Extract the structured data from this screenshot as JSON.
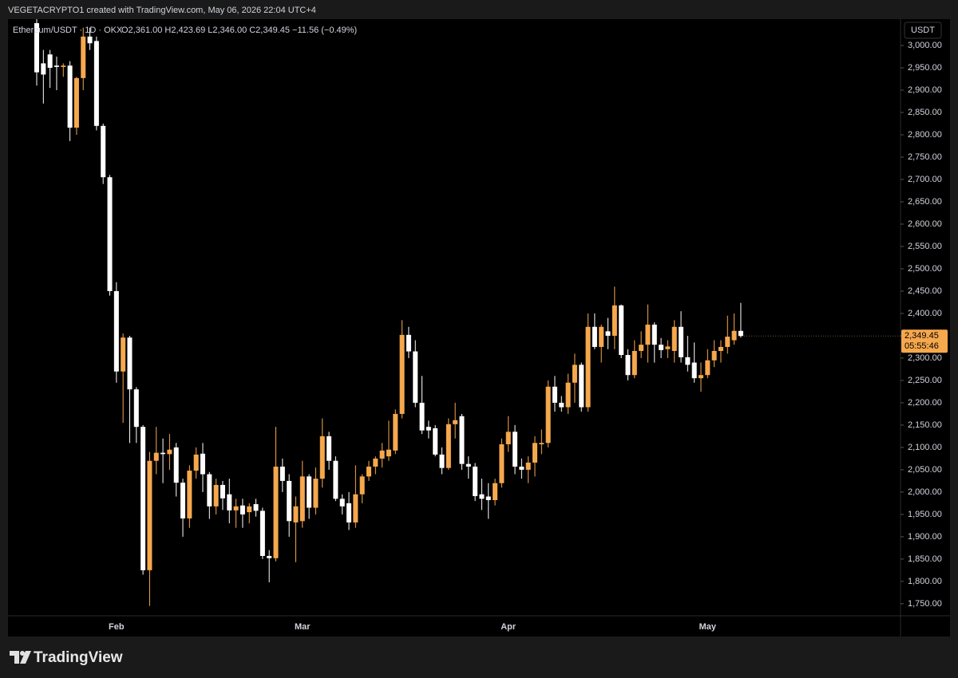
{
  "header": {
    "attribution": "VEGETACRYPTO1 created with TradingView.com, May 06, 2026 22:04 UTC+4"
  },
  "footer": {
    "brand": "TradingView"
  },
  "chart_data": {
    "type": "candlestick",
    "legend": {
      "symbol": "Ethereum/USDT · 1D · OKX",
      "values": "O2,361.00 H2,423.69 L2,346.00 C2,349.45 −11.56 (−0.49%)"
    },
    "currency": "USDT",
    "up_color": "#f6a84d",
    "down_color": "#ffffff",
    "categories": [
      null,
      null,
      null,
      null,
      null,
      null,
      null,
      null,
      null,
      null,
      null,
      null,
      "Feb",
      null,
      null,
      null,
      null,
      null,
      null,
      null,
      null,
      null,
      null,
      null,
      null,
      null,
      null,
      null,
      null,
      null,
      null,
      null,
      null,
      null,
      null,
      null,
      null,
      null,
      null,
      null,
      "Mar",
      null,
      null,
      null,
      null,
      null,
      null,
      null,
      null,
      null,
      null,
      null,
      null,
      null,
      null,
      null,
      null,
      null,
      null,
      null,
      null,
      null,
      null,
      null,
      null,
      null,
      null,
      null,
      null,
      null,
      null,
      "Apr",
      null,
      null,
      null,
      null,
      null,
      null,
      null,
      null,
      null,
      null,
      null,
      null,
      null,
      null,
      null,
      null,
      null,
      null,
      null,
      null,
      null,
      null,
      null,
      null,
      null,
      null,
      null,
      null,
      null,
      "May",
      null,
      null,
      null,
      null,
      null
    ],
    "ohlc": [
      [
        3050,
        3070,
        2910,
        2940
      ],
      [
        2960,
        2990,
        2870,
        2935
      ],
      [
        2980,
        2990,
        2905,
        2950
      ],
      [
        2955,
        2975,
        2900,
        2952
      ],
      [
        2952,
        2960,
        2930,
        2955
      ],
      [
        2955,
        2965,
        2786,
        2816
      ],
      [
        2816,
        2930,
        2800,
        2927
      ],
      [
        2927,
        3040,
        2900,
        3020
      ],
      [
        3020,
        3040,
        2990,
        3005
      ],
      [
        3010,
        3020,
        2810,
        2820
      ],
      [
        2820,
        2825,
        2690,
        2705
      ],
      [
        2705,
        2710,
        2440,
        2450
      ],
      [
        2450,
        2470,
        2245,
        2270
      ],
      [
        2270,
        2355,
        2155,
        2346
      ],
      [
        2346,
        2350,
        2110,
        2230
      ],
      [
        2230,
        2235,
        2110,
        2146
      ],
      [
        2146,
        2150,
        1815,
        1825
      ],
      [
        1825,
        2090,
        1745,
        2070
      ],
      [
        2070,
        2146,
        2040,
        2088
      ],
      [
        2088,
        2120,
        2020,
        2085
      ],
      [
        2085,
        2130,
        2050,
        2095
      ],
      [
        2100,
        2110,
        1990,
        2021
      ],
      [
        2021,
        2030,
        1900,
        1941
      ],
      [
        1941,
        2060,
        1920,
        2048
      ],
      [
        2048,
        2100,
        2030,
        2084
      ],
      [
        2086,
        2110,
        2000,
        2040
      ],
      [
        2040,
        2045,
        1940,
        1968
      ],
      [
        1968,
        2030,
        1950,
        2016
      ],
      [
        2016,
        2025,
        1960,
        1986
      ],
      [
        1995,
        2030,
        1930,
        1959
      ],
      [
        1959,
        1985,
        1920,
        1968
      ],
      [
        1970,
        1985,
        1920,
        1950
      ],
      [
        1955,
        1975,
        1930,
        1968
      ],
      [
        1973,
        1985,
        1945,
        1958
      ],
      [
        1958,
        1965,
        1850,
        1857
      ],
      [
        1857,
        1870,
        1798,
        1852
      ],
      [
        1852,
        2146,
        1845,
        2057
      ],
      [
        2057,
        2075,
        2000,
        2025
      ],
      [
        2025,
        2040,
        1900,
        1935
      ],
      [
        1932,
        1990,
        1843,
        1968
      ],
      [
        1935,
        2070,
        1920,
        2035
      ],
      [
        2035,
        2040,
        1940,
        1965
      ],
      [
        1965,
        2055,
        1950,
        2030
      ],
      [
        2030,
        2165,
        2010,
        2125
      ],
      [
        2125,
        2135,
        2050,
        2070
      ],
      [
        2070,
        2080,
        1980,
        1985
      ],
      [
        1985,
        1995,
        1950,
        1968
      ],
      [
        1975,
        2000,
        1915,
        1932
      ],
      [
        1932,
        2060,
        1920,
        1995
      ],
      [
        1995,
        2040,
        1975,
        2035
      ],
      [
        2035,
        2070,
        2025,
        2057
      ],
      [
        2057,
        2080,
        2040,
        2075
      ],
      [
        2075,
        2110,
        2055,
        2093
      ],
      [
        2080,
        2160,
        2070,
        2095
      ],
      [
        2093,
        2185,
        2085,
        2175
      ],
      [
        2175,
        2385,
        2165,
        2352
      ],
      [
        2352,
        2370,
        2300,
        2315
      ],
      [
        2315,
        2340,
        2190,
        2200
      ],
      [
        2200,
        2260,
        2130,
        2138
      ],
      [
        2146,
        2160,
        2120,
        2138
      ],
      [
        2143,
        2150,
        2080,
        2084
      ],
      [
        2084,
        2100,
        2040,
        2054
      ],
      [
        2054,
        2165,
        2050,
        2152
      ],
      [
        2152,
        2200,
        2120,
        2161
      ],
      [
        2170,
        2175,
        2050,
        2063
      ],
      [
        2063,
        2080,
        2030,
        2057
      ],
      [
        2057,
        2065,
        1980,
        1991
      ],
      [
        1995,
        2030,
        1960,
        1985
      ],
      [
        1990,
        2020,
        1940,
        1982
      ],
      [
        1982,
        2030,
        1970,
        2020
      ],
      [
        2020,
        2120,
        2010,
        2107
      ],
      [
        2107,
        2170,
        2090,
        2135
      ],
      [
        2135,
        2150,
        2040,
        2057
      ],
      [
        2057,
        2075,
        2030,
        2050
      ],
      [
        2050,
        2080,
        2020,
        2066
      ],
      [
        2066,
        2125,
        2035,
        2110
      ],
      [
        2107,
        2140,
        2085,
        2110
      ],
      [
        2110,
        2250,
        2100,
        2236
      ],
      [
        2236,
        2260,
        2180,
        2200
      ],
      [
        2200,
        2215,
        2180,
        2190
      ],
      [
        2190,
        2265,
        2175,
        2245
      ],
      [
        2245,
        2310,
        2200,
        2285
      ],
      [
        2285,
        2290,
        2180,
        2190
      ],
      [
        2190,
        2400,
        2180,
        2370
      ],
      [
        2370,
        2400,
        2320,
        2325
      ],
      [
        2325,
        2375,
        2290,
        2370
      ],
      [
        2360,
        2390,
        2320,
        2350
      ],
      [
        2350,
        2460,
        2320,
        2418
      ],
      [
        2418,
        2420,
        2300,
        2307
      ],
      [
        2307,
        2320,
        2250,
        2262
      ],
      [
        2262,
        2340,
        2255,
        2316
      ],
      [
        2316,
        2360,
        2300,
        2330
      ],
      [
        2330,
        2420,
        2290,
        2375
      ],
      [
        2375,
        2380,
        2290,
        2330
      ],
      [
        2330,
        2345,
        2300,
        2318
      ],
      [
        2320,
        2340,
        2300,
        2326
      ],
      [
        2316,
        2385,
        2290,
        2370
      ],
      [
        2370,
        2405,
        2290,
        2302
      ],
      [
        2302,
        2350,
        2270,
        2285
      ],
      [
        2290,
        2335,
        2245,
        2255
      ],
      [
        2255,
        2290,
        2225,
        2262
      ],
      [
        2262,
        2320,
        2255,
        2295
      ],
      [
        2295,
        2340,
        2280,
        2316
      ],
      [
        2316,
        2340,
        2290,
        2325
      ],
      [
        2325,
        2395,
        2310,
        2348
      ],
      [
        2340,
        2400,
        2330,
        2361
      ],
      [
        2361,
        2423.69,
        2346,
        2349.45
      ]
    ],
    "ylim": [
      1723,
      3059
    ],
    "yticks": [
      {
        "value": 1750,
        "label": "1,750.00"
      },
      {
        "value": 1800,
        "label": "1,800.00"
      },
      {
        "value": 1850,
        "label": "1,850.00"
      },
      {
        "value": 1900,
        "label": "1,900.00"
      },
      {
        "value": 1950,
        "label": "1,950.00"
      },
      {
        "value": 2000,
        "label": "2,000.00"
      },
      {
        "value": 2050,
        "label": "2,050.00"
      },
      {
        "value": 2100,
        "label": "2,100.00"
      },
      {
        "value": 2150,
        "label": "2,150.00"
      },
      {
        "value": 2200,
        "label": "2,200.00"
      },
      {
        "value": 2250,
        "label": "2,250.00"
      },
      {
        "value": 2300,
        "label": "2,300.00"
      },
      {
        "value": 2350,
        "label": "2,350.00"
      },
      {
        "value": 2400,
        "label": "2,400.00"
      },
      {
        "value": 2450,
        "label": "2,450.00"
      },
      {
        "value": 2500,
        "label": "2,500.00"
      },
      {
        "value": 2550,
        "label": "2,550.00"
      },
      {
        "value": 2600,
        "label": "2,600.00"
      },
      {
        "value": 2650,
        "label": "2,650.00"
      },
      {
        "value": 2700,
        "label": "2,700.00"
      },
      {
        "value": 2750,
        "label": "2,750.00"
      },
      {
        "value": 2800,
        "label": "2,800.00"
      },
      {
        "value": 2850,
        "label": "2,850.00"
      },
      {
        "value": 2900,
        "label": "2,900.00"
      },
      {
        "value": 2950,
        "label": "2,950.00"
      },
      {
        "value": 3000,
        "label": "3,000.00"
      }
    ],
    "last_price": {
      "value": 2349.45,
      "label": "2,349.45"
    },
    "countdown": "05:55:46"
  }
}
